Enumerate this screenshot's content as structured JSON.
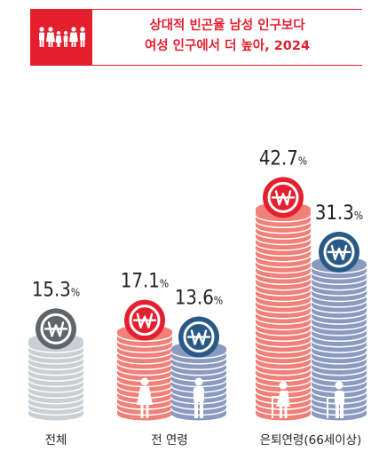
{
  "header": {
    "title_line1": "상대적 빈곤율 남성 인구보다",
    "title_line2": "여성 인구에서 더 높아, 2024",
    "icon": "family-icon"
  },
  "chart_data": {
    "type": "bar",
    "title": "상대적 빈곤율 남성 인구보다 여성 인구에서 더 높아, 2024",
    "unit": "%",
    "groups": [
      {
        "label": "전체",
        "bars": [
          {
            "value": 15.3,
            "label": "15.3%",
            "series": "total",
            "figure": "none"
          }
        ]
      },
      {
        "label": "전 연령",
        "bars": [
          {
            "value": 17.1,
            "label": "17.1%",
            "series": "female",
            "figure": "woman-icon"
          },
          {
            "value": 13.6,
            "label": "13.6%",
            "series": "male",
            "figure": "man-icon"
          }
        ]
      },
      {
        "label": "은퇴연령(66세이상)",
        "bars": [
          {
            "value": 42.7,
            "label": "42.7%",
            "series": "female",
            "figure": "elderly-woman-icon"
          },
          {
            "value": 31.3,
            "label": "31.3%",
            "series": "male",
            "figure": "elderly-man-icon"
          }
        ]
      }
    ],
    "colors": {
      "total": "#5e666b",
      "total_stack": "#c9cfd3",
      "female": "#e5202e",
      "female_stack": "#f08078",
      "male": "#295a86",
      "male_stack": "#8b9bc0",
      "coin_symbol": "won-icon"
    }
  }
}
